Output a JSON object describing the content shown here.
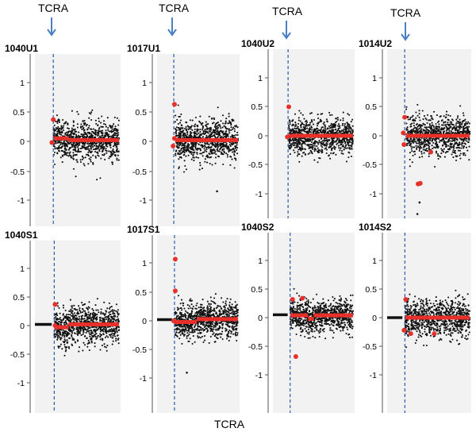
{
  "figure": {
    "bottom_label": "TCRA",
    "marker_label": "TCRA"
  },
  "colors": {
    "points": "#111111",
    "segments": "#e8302a",
    "highlight": "#e8302a",
    "marker_line": "#2b5aa8",
    "arrow": "#4a7fc1",
    "panel_bg": "#f2f2f2"
  },
  "chart_data": [
    {
      "type": "scatter",
      "title": "1040U1",
      "yticks": [
        1,
        0.5,
        0,
        -0.5,
        -1
      ],
      "ylim": [
        -1.4,
        1.5
      ],
      "xlim": [
        0,
        100
      ],
      "marker_x": 8,
      "marker_label": "TCRA",
      "noise_sd": 0.16,
      "baseline": [],
      "segments": [
        {
          "x": [
            8,
            30
          ],
          "y": 0.05
        },
        {
          "x": 30,
          "y2": 0.02
        },
        {
          "x": [
            30,
            100
          ],
          "y": 0.02
        }
      ],
      "highlighted": [
        {
          "x": 8,
          "y": 0.37
        },
        {
          "x": 6,
          "y": -0.02
        }
      ]
    },
    {
      "type": "scatter",
      "title": "1017U1",
      "yticks": [
        1,
        0.5,
        0,
        -0.5,
        -1
      ],
      "ylim": [
        -1.4,
        1.5
      ],
      "xlim": [
        0,
        100
      ],
      "marker_x": 8,
      "marker_label": "TCRA",
      "noise_sd": 0.18,
      "baseline": [],
      "segments": [
        {
          "x": [
            10,
            100
          ],
          "y": 0.02
        }
      ],
      "highlighted": [
        {
          "x": 9,
          "y": 0.63
        },
        {
          "x": 7,
          "y": -0.08
        },
        {
          "x": 9,
          "y": 0.05
        }
      ],
      "outliers": [
        {
          "x": 70,
          "y": -0.85
        }
      ]
    },
    {
      "type": "scatter",
      "title": "1040U2",
      "yticks": [
        1,
        0.5,
        0,
        -0.5,
        -1
      ],
      "ylim": [
        -1.4,
        1.5
      ],
      "xlim": [
        0,
        100
      ],
      "marker_x": 8,
      "marker_label": "TCRA",
      "noise_sd": 0.15,
      "baseline": [],
      "segments": [
        {
          "x": [
            9,
            100
          ],
          "y": 0.0
        }
      ],
      "highlighted": [
        {
          "x": 9,
          "y": 0.5
        },
        {
          "x": 7,
          "y": -0.02
        }
      ]
    },
    {
      "type": "scatter",
      "title": "1014U2",
      "yticks": [
        1,
        0.5,
        0,
        -0.5,
        -1
      ],
      "ylim": [
        -1.4,
        1.5
      ],
      "xlim": [
        0,
        100
      ],
      "marker_x": 8,
      "marker_label": "TCRA",
      "noise_sd": 0.17,
      "baseline": [],
      "segments": [
        {
          "x": [
            10,
            100
          ],
          "y": 0.0
        }
      ],
      "highlighted": [
        {
          "x": 8,
          "y": 0.32
        },
        {
          "x": 6,
          "y": 0.05
        },
        {
          "x": 7,
          "y": -0.15
        },
        {
          "x": 45,
          "y": -0.28
        },
        {
          "x": 27,
          "y": -0.83
        },
        {
          "x": 30,
          "y": -0.82
        }
      ],
      "outliers": [
        {
          "x": 26,
          "y": -1.35
        },
        {
          "x": 29,
          "y": -1.15
        }
      ]
    },
    {
      "type": "scatter",
      "title": "1040S1",
      "yticks": [
        1,
        0.5,
        0,
        -0.5,
        -1
      ],
      "ylim": [
        -1.4,
        1.5
      ],
      "xlim": [
        0,
        100
      ],
      "marker_x": 23,
      "marker_label": "",
      "noise_sd": 0.15,
      "baseline": [
        {
          "x": [
            0,
            20
          ],
          "y": 0.02
        }
      ],
      "segments": [
        {
          "x": [
            23,
            40
          ],
          "y": -0.03
        },
        {
          "x": [
            40,
            100
          ],
          "y": 0.02
        }
      ],
      "highlighted": [
        {
          "x": 24,
          "y": 0.37
        },
        {
          "x": 24,
          "y": 0.0
        }
      ]
    },
    {
      "type": "scatter",
      "title": "1017S1",
      "yticks": [
        1,
        0.5,
        0,
        -0.5,
        -1
      ],
      "ylim": [
        -1.4,
        1.5
      ],
      "xlim": [
        0,
        100
      ],
      "marker_x": 23,
      "marker_label": "",
      "noise_sd": 0.15,
      "baseline": [
        {
          "x": [
            0,
            20
          ],
          "y": 0.02
        }
      ],
      "segments": [
        {
          "x": [
            23,
            50
          ],
          "y": -0.02
        },
        {
          "x": [
            50,
            100
          ],
          "y": 0.03
        }
      ],
      "highlighted": [
        {
          "x": 24,
          "y": 1.07
        },
        {
          "x": 24,
          "y": 0.52
        },
        {
          "x": 22,
          "y": 0.0
        }
      ],
      "outliers": [
        {
          "x": 38,
          "y": -0.9
        }
      ]
    },
    {
      "type": "scatter",
      "title": "1040S2",
      "yticks": [
        1,
        0.5,
        0,
        -0.5,
        -1
      ],
      "ylim": [
        -1.4,
        1.5
      ],
      "xlim": [
        0,
        100
      ],
      "marker_x": 23,
      "marker_label": "",
      "noise_sd": 0.14,
      "baseline": [
        {
          "x": [
            0,
            20
          ],
          "y": 0.05
        }
      ],
      "segments": [
        {
          "x": [
            23,
            45
          ],
          "y": 0.04
        },
        {
          "x": [
            45,
            52
          ],
          "y": -0.02
        },
        {
          "x": [
            52,
            100
          ],
          "y": 0.04
        }
      ],
      "highlighted": [
        {
          "x": 26,
          "y": 0.32
        },
        {
          "x": 38,
          "y": 0.34
        },
        {
          "x": 30,
          "y": -0.68
        }
      ]
    },
    {
      "type": "scatter",
      "title": "1014S2",
      "yticks": [
        1,
        0.5,
        0,
        -0.5,
        -1
      ],
      "ylim": [
        -1.4,
        1.5
      ],
      "xlim": [
        0,
        100
      ],
      "marker_x": 23,
      "marker_label": "",
      "noise_sd": 0.16,
      "baseline": [
        {
          "x": [
            0,
            20
          ],
          "y": 0.0
        }
      ],
      "segments": [
        {
          "x": [
            23,
            100
          ],
          "y": 0.0
        }
      ],
      "highlighted": [
        {
          "x": 24,
          "y": 0.32
        },
        {
          "x": 22,
          "y": -0.22
        },
        {
          "x": 30,
          "y": -0.28
        },
        {
          "x": 58,
          "y": -0.28
        }
      ]
    }
  ]
}
